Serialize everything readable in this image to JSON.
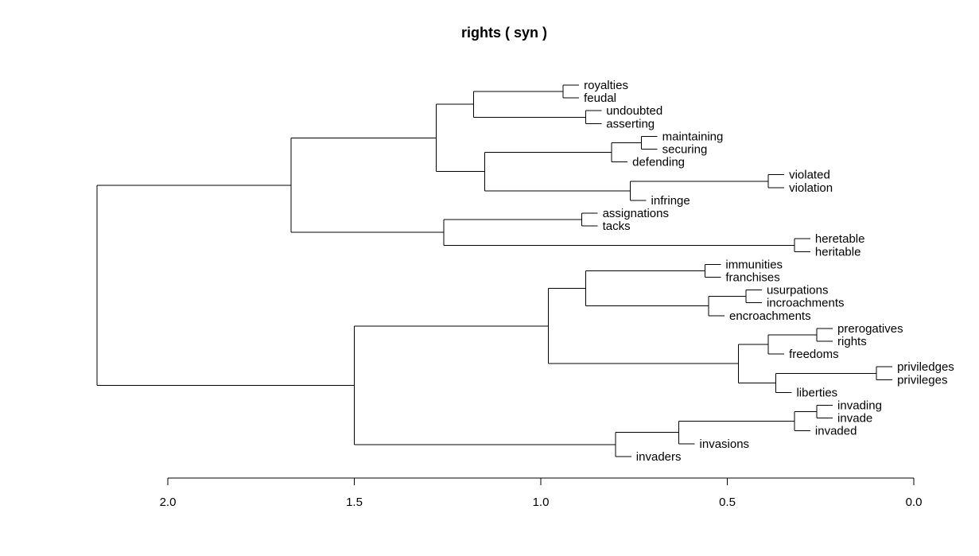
{
  "chart_data": {
    "type": "dendrogram",
    "title": "rights  ( syn )",
    "orientation": "horizontal",
    "xlim": [
      2.0,
      0.0
    ],
    "x_ticks": [
      {
        "value": 2.0,
        "label": "2.0"
      },
      {
        "value": 1.5,
        "label": "1.5"
      },
      {
        "value": 1.0,
        "label": "1.0"
      },
      {
        "value": 0.5,
        "label": "0.5"
      },
      {
        "value": 0.0,
        "label": "0.0"
      }
    ],
    "leaves": [
      "royalties",
      "feudal",
      "undoubted",
      "asserting",
      "maintaining",
      "securing",
      "defending",
      "violated",
      "violation",
      "infringe",
      "assignations",
      "tacks",
      "heretable",
      "heritable",
      "immunities",
      "franchises",
      "usurpations",
      "incroachments",
      "encroachments",
      "prerogatives",
      "rights",
      "freedoms",
      "priviledges",
      "privileges",
      "liberties",
      "invading",
      "invade",
      "invaded",
      "invasions",
      "invaders"
    ],
    "tree": {
      "h": 2.19,
      "c": [
        {
          "h": 1.67,
          "c": [
            {
              "h": 1.28,
              "c": [
                {
                  "h": 1.18,
                  "c": [
                    {
                      "h": 0.94,
                      "c": [
                        "royalties",
                        "feudal"
                      ]
                    },
                    {
                      "h": 0.88,
                      "c": [
                        "undoubted",
                        "asserting"
                      ]
                    }
                  ]
                },
                {
                  "h": 1.15,
                  "c": [
                    {
                      "h": 0.81,
                      "c": [
                        {
                          "h": 0.73,
                          "c": [
                            "maintaining",
                            "securing"
                          ]
                        },
                        "defending"
                      ]
                    },
                    {
                      "h": 0.76,
                      "c": [
                        {
                          "h": 0.39,
                          "c": [
                            "violated",
                            "violation"
                          ]
                        },
                        "infringe"
                      ]
                    }
                  ]
                }
              ]
            },
            {
              "h": 1.26,
              "c": [
                {
                  "h": 0.89,
                  "c": [
                    "assignations",
                    "tacks"
                  ]
                },
                {
                  "h": 0.32,
                  "c": [
                    "heretable",
                    "heritable"
                  ]
                }
              ]
            }
          ]
        },
        {
          "h": 1.5,
          "c": [
            {
              "h": 0.98,
              "c": [
                {
                  "h": 0.88,
                  "c": [
                    {
                      "h": 0.56,
                      "c": [
                        "immunities",
                        "franchises"
                      ]
                    },
                    {
                      "h": 0.55,
                      "c": [
                        {
                          "h": 0.45,
                          "c": [
                            "usurpations",
                            "incroachments"
                          ]
                        },
                        "encroachments"
                      ]
                    }
                  ]
                },
                {
                  "h": 0.47,
                  "c": [
                    {
                      "h": 0.39,
                      "c": [
                        {
                          "h": 0.26,
                          "c": [
                            "prerogatives",
                            "rights"
                          ]
                        },
                        "freedoms"
                      ]
                    },
                    {
                      "h": 0.37,
                      "c": [
                        {
                          "h": 0.1,
                          "c": [
                            "priviledges",
                            "privileges"
                          ]
                        },
                        "liberties"
                      ]
                    }
                  ]
                }
              ]
            },
            {
              "h": 0.8,
              "c": [
                {
                  "h": 0.63,
                  "c": [
                    {
                      "h": 0.32,
                      "c": [
                        {
                          "h": 0.26,
                          "c": [
                            "invading",
                            "invade"
                          ]
                        },
                        "invaded"
                      ]
                    },
                    "invasions"
                  ]
                },
                "invaders"
              ]
            }
          ]
        }
      ]
    }
  }
}
